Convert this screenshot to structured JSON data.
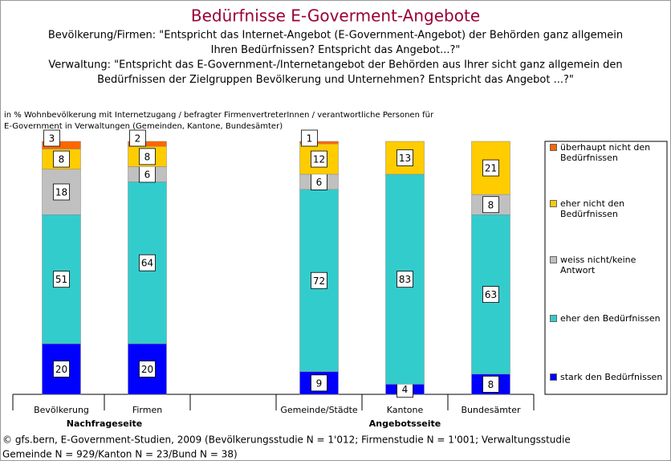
{
  "chart_data": {
    "type": "stacked_bar",
    "title": "Bedürfnisse E-Goverment-Angebote",
    "subtitles": [
      "Bevölkerung/Firmen: \"Entspricht das Internet-Angebot (E-Government-Angebot) der Behörden ganz allgemein",
      "Ihren Bedürfnissen? Entspricht das Angebot...?\"",
      "Verwaltung: \"Entspricht das E-Government-/Internetangebot der Behörden aus Ihrer sicht ganz allgemein den",
      "Bedürfnissen der Zielgruppen Bevölkerung und Unternehmen? Entspricht  das Angebot ...?\""
    ],
    "note": [
      "in % Wohnbevölkerung mit Internetzugang / befragter FirmenvertreterInnen / verantwortliche Personen für",
      "E-Government in Verwaltungen (Gemeinden, Kantone, Bundesämter)"
    ],
    "categories": [
      "Bevölkerung",
      "Firmen",
      null,
      "Gemeinde/Städte",
      "Kantone",
      "Bundesämter"
    ],
    "groups": [
      "Nachfrageseite",
      "Angebotsseite"
    ],
    "series": [
      {
        "name": "stark den Bedürfnissen",
        "color": "#0000ff",
        "values": [
          20,
          20,
          null,
          9,
          4,
          8
        ]
      },
      {
        "name": "eher den Bedürfnissen",
        "color": "#33cccc",
        "values": [
          51,
          64,
          null,
          72,
          83,
          63
        ]
      },
      {
        "name": "weiss nicht/keine Antwort",
        "color": "#c0c0c0",
        "values": [
          18,
          6,
          null,
          6,
          null,
          8
        ]
      },
      {
        "name": "eher nicht den Bedürfnissen",
        "color": "#ffcc00",
        "values": [
          8,
          8,
          null,
          12,
          13,
          21
        ]
      },
      {
        "name": "überhaupt nicht den Bedürfnissen",
        "color": "#ff6600",
        "values": [
          3,
          2,
          null,
          1,
          null,
          null
        ]
      }
    ],
    "ylim": [
      0,
      100
    ],
    "source": [
      "© gfs.bern, E-Government-Studien, 2009 (Bevölkerungsstudie N = 1'012; Firmenstudie N = 1'001; Verwaltungsstudie",
      "Gemeinde N = 929/Kanton N = 23/Bund N = 38)"
    ]
  }
}
